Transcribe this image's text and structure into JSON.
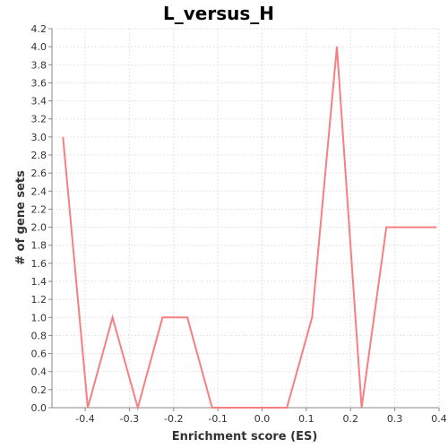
{
  "chart_data": {
    "type": "line",
    "title": "L_versus_H",
    "xlabel": "Enrichment score (ES)",
    "ylabel": "# of gene sets",
    "xlim": [
      -0.475,
      0.4
    ],
    "ylim": [
      0.0,
      4.2
    ],
    "x_ticks": [
      -0.4,
      -0.3,
      -0.2,
      -0.1,
      0.0,
      0.1,
      0.2,
      0.3,
      0.4
    ],
    "x_tick_labels": [
      "-0.4",
      "-0.3",
      "-0.2",
      "-0.1",
      "0.0",
      "0.1",
      "0.2",
      "0.3",
      "0.4"
    ],
    "y_ticks": [
      0.0,
      0.2,
      0.4,
      0.6,
      0.8,
      1.0,
      1.2,
      1.4,
      1.6,
      1.8,
      2.0,
      2.2,
      2.4,
      2.6,
      2.8,
      3.0,
      3.2,
      3.4,
      3.6,
      3.8,
      4.0,
      4.2
    ],
    "y_tick_labels": [
      "0.0",
      "0.2",
      "0.4",
      "0.6",
      "0.8",
      "1.0",
      "1.2",
      "1.4",
      "1.6",
      "1.8",
      "2.0",
      "2.2",
      "2.4",
      "2.6",
      "2.8",
      "3.0",
      "3.2",
      "3.4",
      "3.6",
      "3.8",
      "4.0",
      "4.2"
    ],
    "grid": true,
    "series": [
      {
        "name": "L_versus_H",
        "color": "#f67f82",
        "x": [
          -0.45,
          -0.394,
          -0.338,
          -0.281,
          -0.225,
          -0.169,
          -0.113,
          -0.056,
          0.0,
          0.056,
          0.113,
          0.169,
          0.225,
          0.281,
          0.338,
          0.394
        ],
        "y": [
          3,
          0,
          1,
          0,
          1,
          1,
          0,
          0,
          0,
          0,
          1,
          4,
          0,
          2,
          2,
          2
        ]
      }
    ]
  }
}
